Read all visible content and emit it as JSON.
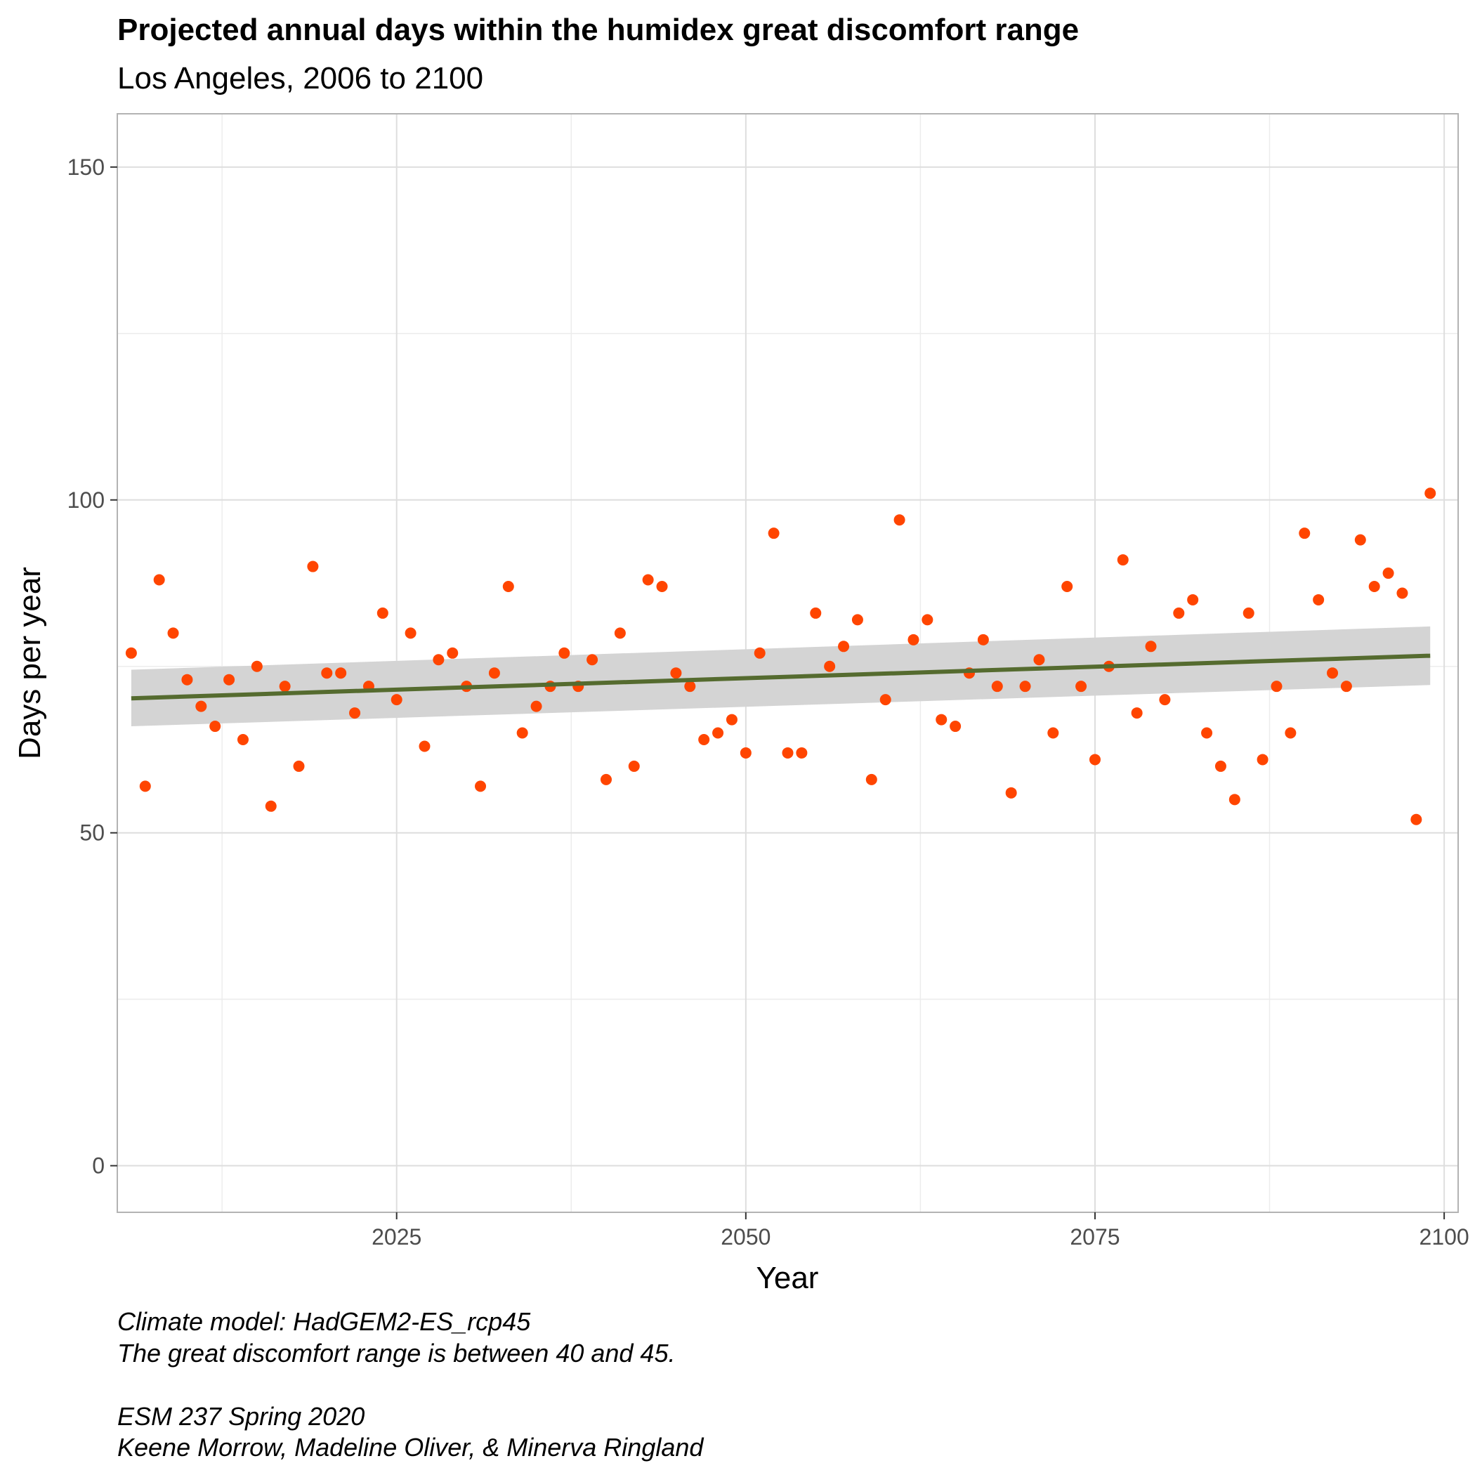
{
  "chart_data": {
    "type": "scatter",
    "title": "Projected annual days within the humidex great discomfort range",
    "subtitle": "Los Angeles, 2006 to 2100",
    "xlabel": "Year",
    "ylabel": "Days per year",
    "xlim": [
      2005,
      2101
    ],
    "ylim": [
      -7,
      158
    ],
    "x_ticks": [
      2025,
      2050,
      2075,
      2100
    ],
    "y_ticks": [
      0,
      50,
      100,
      150
    ],
    "grid": true,
    "colors": {
      "points": "#FF4500",
      "trend": "#556B2F",
      "ribbon": "#D4D4D4"
    },
    "caption": [
      "Climate model:  HadGEM2-ES_rcp45",
      "The great discomfort range is between 40 and 45.",
      "",
      "ESM 237 Spring 2020",
      "Keene Morrow, Madeline Oliver, & Minerva Ringland"
    ],
    "series": [
      {
        "x": [
          2006,
          2007,
          2008,
          2009,
          2010,
          2011,
          2012,
          2013,
          2014,
          2015,
          2016,
          2017,
          2018,
          2019,
          2020,
          2021,
          2022,
          2023,
          2024,
          2025,
          2026,
          2027,
          2028,
          2029,
          2030,
          2031,
          2032,
          2033,
          2034,
          2035,
          2036,
          2037,
          2038,
          2039,
          2040,
          2041,
          2042,
          2043,
          2044,
          2045,
          2046,
          2047,
          2048,
          2049,
          2050,
          2051,
          2052,
          2053,
          2054,
          2055,
          2056,
          2057,
          2058,
          2059,
          2060,
          2061,
          2062,
          2063,
          2064,
          2065,
          2066,
          2067,
          2068,
          2069,
          2070,
          2071,
          2072,
          2073,
          2074,
          2075,
          2076,
          2077,
          2078,
          2079,
          2080,
          2081,
          2082,
          2083,
          2084,
          2085,
          2086,
          2087,
          2088,
          2089,
          2090,
          2091,
          2092,
          2093,
          2094,
          2095,
          2096,
          2097,
          2098,
          2099
        ],
        "y": [
          77,
          57,
          88,
          80,
          73,
          69,
          66,
          73,
          64,
          75,
          54,
          72,
          60,
          90,
          74,
          74,
          68,
          72,
          83,
          70,
          80,
          63,
          76,
          77,
          72,
          57,
          74,
          87,
          65,
          69,
          72,
          77,
          72,
          76,
          58,
          80,
          60,
          88,
          87,
          74,
          72,
          64,
          65,
          67,
          62,
          77,
          95,
          62,
          62,
          83,
          75,
          78,
          82,
          58,
          70,
          97,
          79,
          82,
          67,
          66,
          74,
          79,
          72,
          56,
          72,
          76,
          65,
          87,
          72,
          61,
          75,
          91,
          68,
          78,
          70,
          83,
          85,
          65,
          60,
          55,
          83,
          61,
          72,
          65,
          95,
          85,
          74,
          72,
          94,
          87,
          89,
          86,
          52,
          101
        ]
      }
    ],
    "trend": {
      "x": [
        2006,
        2099
      ],
      "y": [
        70.2,
        76.6
      ],
      "lower": [
        66.0,
        72.2
      ],
      "upper": [
        74.5,
        81.0
      ]
    }
  }
}
